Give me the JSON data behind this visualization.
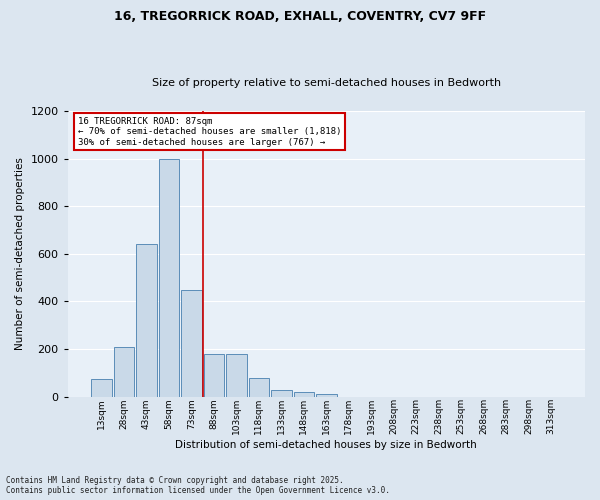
{
  "title1": "16, TREGORRICK ROAD, EXHALL, COVENTRY, CV7 9FF",
  "title2": "Size of property relative to semi-detached houses in Bedworth",
  "xlabel": "Distribution of semi-detached houses by size in Bedworth",
  "ylabel": "Number of semi-detached properties",
  "footnote": "Contains HM Land Registry data © Crown copyright and database right 2025.\nContains public sector information licensed under the Open Government Licence v3.0.",
  "bar_labels": [
    "13sqm",
    "28sqm",
    "43sqm",
    "58sqm",
    "73sqm",
    "88sqm",
    "103sqm",
    "118sqm",
    "133sqm",
    "148sqm",
    "163sqm",
    "178sqm",
    "193sqm",
    "208sqm",
    "223sqm",
    "238sqm",
    "253sqm",
    "268sqm",
    "283sqm",
    "298sqm",
    "313sqm"
  ],
  "bar_values": [
    75,
    210,
    640,
    1000,
    450,
    180,
    180,
    80,
    30,
    20,
    10,
    0,
    0,
    0,
    0,
    0,
    0,
    0,
    0,
    0,
    0
  ],
  "bar_color": "#c9d9e8",
  "bar_edge_color": "#5b8db8",
  "vline_color": "#cc0000",
  "annotation_title": "16 TREGORRICK ROAD: 87sqm",
  "annotation_line1": "← 70% of semi-detached houses are smaller (1,818)",
  "annotation_line2": "30% of semi-detached houses are larger (767) →",
  "annotation_box_color": "#cc0000",
  "ylim": [
    0,
    1200
  ],
  "yticks": [
    0,
    200,
    400,
    600,
    800,
    1000,
    1200
  ],
  "bg_color": "#dce6f0",
  "plot_bg_color": "#e8f0f8",
  "grid_color": "#ffffff",
  "title1_fontsize": 9,
  "title2_fontsize": 8,
  "annotation_fontsize": 6.5,
  "axis_label_fontsize": 7.5,
  "ytick_fontsize": 8,
  "xtick_fontsize": 6.5,
  "footnote_fontsize": 5.5
}
